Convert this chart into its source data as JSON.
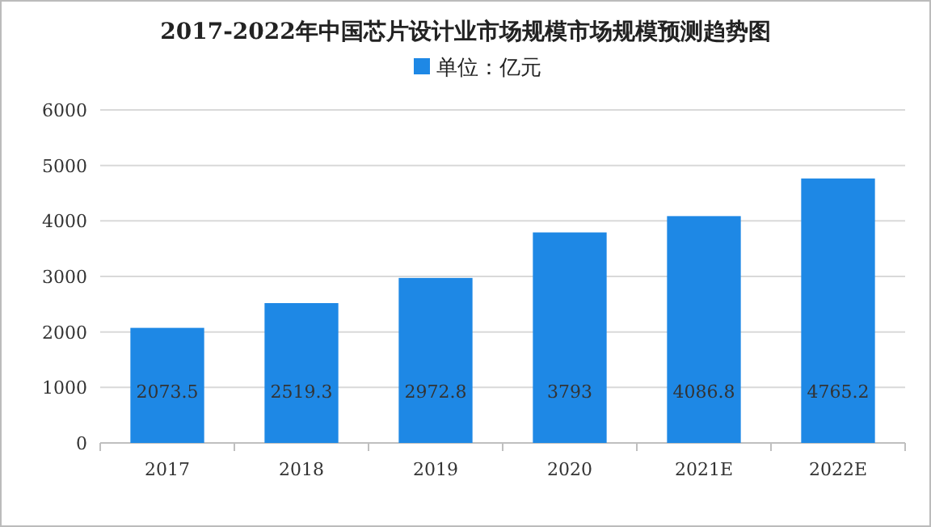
{
  "chart_data": {
    "type": "bar",
    "title": "2017-2022年中国芯片设计业市场规模市场规模预测趋势图",
    "categories": [
      "2017",
      "2018",
      "2019",
      "2020",
      "2021E",
      "2022E"
    ],
    "series": [
      {
        "name": "单位：亿元",
        "color": "#1e88e5",
        "values": [
          2073.5,
          2519.3,
          2972.8,
          3793,
          4086.8,
          4765.2
        ]
      }
    ],
    "ylim": [
      0,
      6000
    ],
    "yticks": [
      0,
      1000,
      2000,
      3000,
      4000,
      5000,
      6000
    ],
    "grid": "y",
    "legend": "top",
    "data_labels": true
  }
}
